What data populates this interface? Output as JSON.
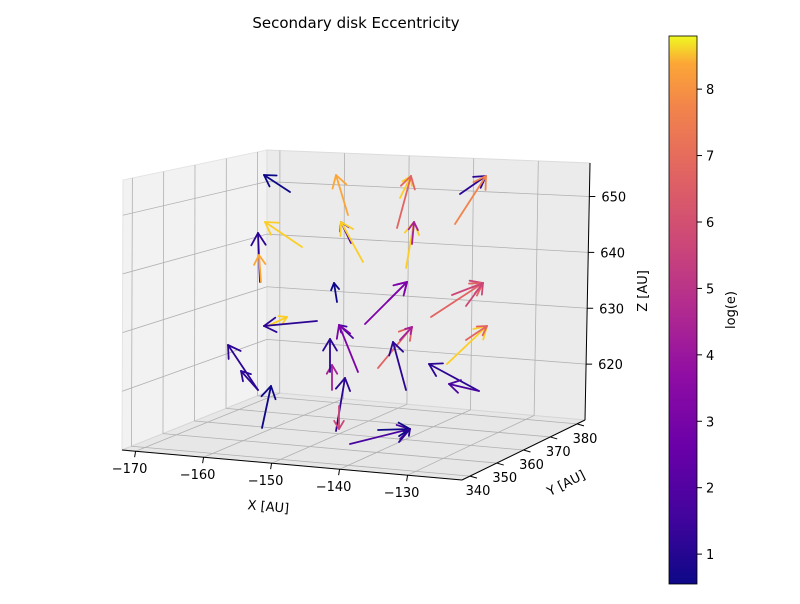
{
  "chart_data": {
    "type": "quiver3d",
    "title": "Secondary disk Eccentricity",
    "xlabel": "X [AU]",
    "ylabel": "Y [AU]",
    "zlabel": "Z [AU]",
    "xlim": [
      -172,
      -122
    ],
    "ylim": [
      337,
      383
    ],
    "zlim": [
      610,
      656
    ],
    "xticks": [
      -170,
      -160,
      -150,
      -140,
      -130
    ],
    "yticks": [
      340,
      350,
      360,
      370,
      380
    ],
    "zticks": [
      620,
      630,
      640,
      650
    ],
    "grid": true,
    "colorbar": {
      "label": "log(e)",
      "colormap": "plasma",
      "range": [
        0.55,
        8.8
      ],
      "ticks": [
        1,
        2,
        3,
        4,
        5,
        6,
        7,
        8
      ]
    },
    "arrow_colors": [
      "#0d0887",
      "#2c0594",
      "#4903a0",
      "#7e03a8",
      "#a62098",
      "#cc4778",
      "#e16462",
      "#f2844b",
      "#fca636",
      "#fcce25"
    ]
  }
}
